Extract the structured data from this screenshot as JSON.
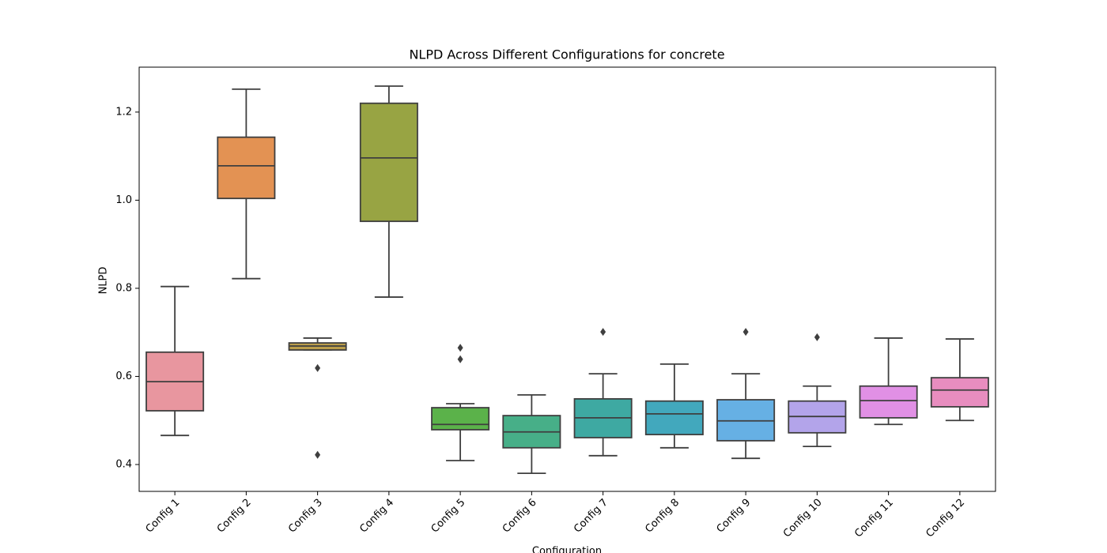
{
  "chart_data": {
    "type": "box",
    "title": "NLPD Across Different Configurations for concrete",
    "x_label": "Configuration",
    "y_label": "NLPD",
    "categories": [
      "Config 1",
      "Config 2",
      "Config 3",
      "Config 4",
      "Config 5",
      "Config 6",
      "Config 7",
      "Config 8",
      "Config 9",
      "Config 10",
      "Config 11",
      "Config 12"
    ],
    "boxes": [
      {
        "color": "#e8969f",
        "whislo": 0.466,
        "q1": 0.522,
        "med": 0.588,
        "q3": 0.655,
        "whishi": 0.804,
        "fliers": []
      },
      {
        "color": "#e39253",
        "whislo": 0.822,
        "q1": 1.004,
        "med": 1.078,
        "q3": 1.143,
        "whishi": 1.252,
        "fliers": []
      },
      {
        "color": "#bb9e4c",
        "whislo": 0.66,
        "q1": 0.66,
        "med": 0.669,
        "q3": 0.676,
        "whishi": 0.687,
        "fliers": [
          0.619,
          0.422
        ]
      },
      {
        "color": "#98a443",
        "whislo": 0.78,
        "q1": 0.952,
        "med": 1.096,
        "q3": 1.22,
        "whishi": 1.259,
        "fliers": []
      },
      {
        "color": "#5bb24a",
        "whislo": 0.409,
        "q1": 0.479,
        "med": 0.491,
        "q3": 0.529,
        "whishi": 0.538,
        "fliers": [
          0.665,
          0.639
        ]
      },
      {
        "color": "#47af88",
        "whislo": 0.38,
        "q1": 0.438,
        "med": 0.474,
        "q3": 0.511,
        "whishi": 0.558,
        "fliers": []
      },
      {
        "color": "#3ea9a2",
        "whislo": 0.42,
        "q1": 0.461,
        "med": 0.506,
        "q3": 0.549,
        "whishi": 0.606,
        "fliers": [
          0.701
        ]
      },
      {
        "color": "#42a8bd",
        "whislo": 0.438,
        "q1": 0.468,
        "med": 0.515,
        "q3": 0.544,
        "whishi": 0.628,
        "fliers": []
      },
      {
        "color": "#66b0e4",
        "whislo": 0.414,
        "q1": 0.454,
        "med": 0.499,
        "q3": 0.547,
        "whishi": 0.606,
        "fliers": [
          0.701
        ]
      },
      {
        "color": "#b3a4ea",
        "whislo": 0.441,
        "q1": 0.472,
        "med": 0.509,
        "q3": 0.544,
        "whishi": 0.578,
        "fliers": [
          0.689
        ]
      },
      {
        "color": "#e190e5",
        "whislo": 0.491,
        "q1": 0.506,
        "med": 0.545,
        "q3": 0.578,
        "whishi": 0.687,
        "fliers": []
      },
      {
        "color": "#e88dbf",
        "whislo": 0.5,
        "q1": 0.531,
        "med": 0.569,
        "q3": 0.597,
        "whishi": 0.685,
        "fliers": []
      }
    ],
    "ylim": [
      0.339,
      1.302
    ],
    "yticks": [
      0.4,
      0.6,
      0.8,
      1.0,
      1.2
    ]
  }
}
